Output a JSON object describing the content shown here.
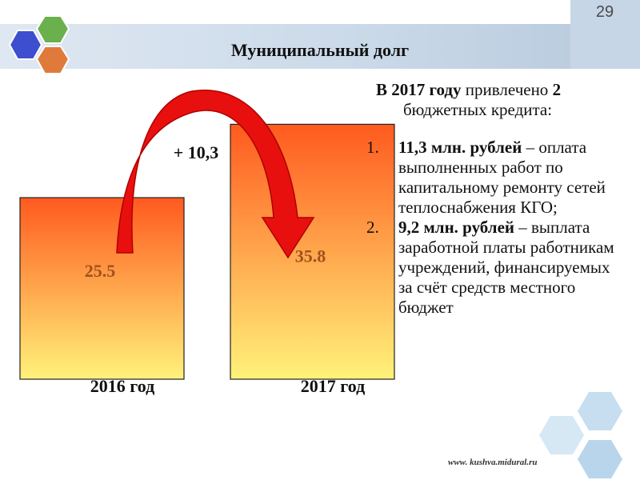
{
  "page": {
    "number": "29",
    "title": "Муниципальный долг",
    "footer_url": "www. kushva.midural.ru"
  },
  "colors": {
    "bar_top": "#ff5a1f",
    "bar_bottom": "#fff27a",
    "arrow": "#e8100f",
    "header_band": "#c9d8e8",
    "logo_blue": "#3d4fcf",
    "logo_green": "#6ab04c",
    "logo_orange": "#e07a3a",
    "deco_hex": "#c6def0"
  },
  "chart_data": {
    "type": "bar",
    "categories": [
      "2016 год",
      "2017 год"
    ],
    "values": [
      25.5,
      35.8
    ],
    "value_labels": [
      "25.5",
      "35.8"
    ],
    "annotations": [
      {
        "text": "+ 10,3",
        "from": "2016 год",
        "to": "2017 год",
        "shape": "curved-arrow"
      }
    ],
    "title": "",
    "xlabel": "",
    "ylabel": "",
    "grid": false,
    "legend": "none"
  },
  "text": {
    "intro_line1_bold": "В 2017 году",
    "intro_line1_rest": " привлечено ",
    "intro_line1_num": "2",
    "intro_line2": "бюджетных кредита:",
    "items": [
      {
        "num": "1.",
        "bold": "11,3 млн. рублей",
        "rest": " – оплата выполненных работ по капитальному ремонту сетей теплоснабжения КГО;"
      },
      {
        "num": "2.",
        "bold": "9,2 млн. рублей",
        "rest": " – выплата заработной платы работникам учреждений, финансируемых за счёт средств местного бюджет"
      }
    ]
  }
}
